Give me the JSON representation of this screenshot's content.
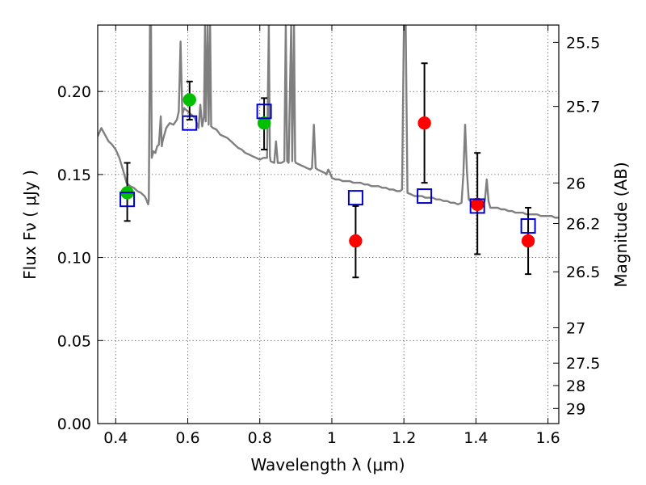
{
  "chart_data": {
    "type": "scatter",
    "xlabel": "Wavelength  λ (μm)",
    "ylabel": "Flux  Fν  ( μJy )",
    "ylabel_right": "Magnitude (AB)",
    "xlim": [
      0.35,
      1.63
    ],
    "ylim": [
      0.0,
      0.24
    ],
    "grid": true,
    "x_ticks": [
      0.4,
      0.6,
      0.8,
      1.0,
      1.2,
      1.4,
      1.6
    ],
    "x_tick_labels": [
      "0.4",
      "0.6",
      "0.8",
      "1",
      "1.2",
      "1.4",
      "1.6"
    ],
    "y_ticks": [
      0.0,
      0.05,
      0.1,
      0.15,
      0.2
    ],
    "y_tick_labels": [
      "0.00",
      "0.05",
      "0.10",
      "0.15",
      "0.20"
    ],
    "mag_ticks": [
      {
        "label": "25.5",
        "flux": 0.2296
      },
      {
        "label": "25.7",
        "flux": 0.191
      },
      {
        "label": "26",
        "flux": 0.1449
      },
      {
        "label": "26.2",
        "flux": 0.1205
      },
      {
        "label": "26.5",
        "flux": 0.0914
      },
      {
        "label": "27",
        "flux": 0.0577
      },
      {
        "label": "27.5",
        "flux": 0.0364
      },
      {
        "label": "28",
        "flux": 0.0229
      },
      {
        "label": "29",
        "flux": 0.0091
      }
    ],
    "series": [
      {
        "kind": "line",
        "color": "#7f7f7f",
        "points": [
          [
            0.35,
            0.173
          ],
          [
            0.36,
            0.178
          ],
          [
            0.37,
            0.174
          ],
          [
            0.38,
            0.17
          ],
          [
            0.39,
            0.168
          ],
          [
            0.4,
            0.165
          ],
          [
            0.41,
            0.16
          ],
          [
            0.42,
            0.153
          ],
          [
            0.43,
            0.145
          ],
          [
            0.44,
            0.143
          ],
          [
            0.45,
            0.142
          ],
          [
            0.46,
            0.14
          ],
          [
            0.47,
            0.139
          ],
          [
            0.48,
            0.137
          ],
          [
            0.485,
            0.135
          ],
          [
            0.49,
            0.132
          ],
          [
            0.492,
            0.135
          ],
          [
            0.495,
            0.24
          ],
          [
            0.498,
            0.24
          ],
          [
            0.5,
            0.16
          ],
          [
            0.505,
            0.164
          ],
          [
            0.51,
            0.163
          ],
          [
            0.515,
            0.167
          ],
          [
            0.52,
            0.168
          ],
          [
            0.525,
            0.185
          ],
          [
            0.528,
            0.167
          ],
          [
            0.53,
            0.17
          ],
          [
            0.54,
            0.178
          ],
          [
            0.55,
            0.181
          ],
          [
            0.56,
            0.18
          ],
          [
            0.57,
            0.183
          ],
          [
            0.575,
            0.188
          ],
          [
            0.58,
            0.23
          ],
          [
            0.585,
            0.186
          ],
          [
            0.59,
            0.19
          ],
          [
            0.6,
            0.188
          ],
          [
            0.61,
            0.186
          ],
          [
            0.62,
            0.184
          ],
          [
            0.625,
            0.181
          ],
          [
            0.63,
            0.178
          ],
          [
            0.635,
            0.192
          ],
          [
            0.64,
            0.179
          ],
          [
            0.645,
            0.185
          ],
          [
            0.648,
            0.24
          ],
          [
            0.65,
            0.182
          ],
          [
            0.655,
            0.24
          ],
          [
            0.658,
            0.18
          ],
          [
            0.662,
            0.24
          ],
          [
            0.665,
            0.179
          ],
          [
            0.67,
            0.178
          ],
          [
            0.68,
            0.177
          ],
          [
            0.69,
            0.174
          ],
          [
            0.7,
            0.173
          ],
          [
            0.71,
            0.172
          ],
          [
            0.72,
            0.17
          ],
          [
            0.73,
            0.168
          ],
          [
            0.74,
            0.166
          ],
          [
            0.75,
            0.165
          ],
          [
            0.76,
            0.163
          ],
          [
            0.77,
            0.162
          ],
          [
            0.78,
            0.161
          ],
          [
            0.79,
            0.16
          ],
          [
            0.8,
            0.159
          ],
          [
            0.81,
            0.16
          ],
          [
            0.82,
            0.16
          ],
          [
            0.825,
            0.24
          ],
          [
            0.828,
            0.161
          ],
          [
            0.83,
            0.158
          ],
          [
            0.84,
            0.157
          ],
          [
            0.845,
            0.17
          ],
          [
            0.85,
            0.157
          ],
          [
            0.86,
            0.157
          ],
          [
            0.868,
            0.158
          ],
          [
            0.872,
            0.24
          ],
          [
            0.876,
            0.158
          ],
          [
            0.88,
            0.157
          ],
          [
            0.887,
            0.24
          ],
          [
            0.89,
            0.158
          ],
          [
            0.895,
            0.24
          ],
          [
            0.898,
            0.158
          ],
          [
            0.9,
            0.157
          ],
          [
            0.91,
            0.156
          ],
          [
            0.92,
            0.155
          ],
          [
            0.93,
            0.154
          ],
          [
            0.94,
            0.153
          ],
          [
            0.945,
            0.154
          ],
          [
            0.95,
            0.18
          ],
          [
            0.955,
            0.154
          ],
          [
            0.96,
            0.153
          ],
          [
            0.97,
            0.152
          ],
          [
            0.98,
            0.151
          ],
          [
            0.985,
            0.15
          ],
          [
            0.99,
            0.153
          ],
          [
            0.995,
            0.151
          ],
          [
            1.0,
            0.148
          ],
          [
            1.01,
            0.147
          ],
          [
            1.02,
            0.147
          ],
          [
            1.03,
            0.146
          ],
          [
            1.04,
            0.146
          ],
          [
            1.05,
            0.146
          ],
          [
            1.06,
            0.145
          ],
          [
            1.07,
            0.145
          ],
          [
            1.08,
            0.145
          ],
          [
            1.09,
            0.144
          ],
          [
            1.1,
            0.144
          ],
          [
            1.11,
            0.143
          ],
          [
            1.12,
            0.143
          ],
          [
            1.13,
            0.143
          ],
          [
            1.14,
            0.142
          ],
          [
            1.15,
            0.142
          ],
          [
            1.16,
            0.141
          ],
          [
            1.17,
            0.141
          ],
          [
            1.18,
            0.14
          ],
          [
            1.19,
            0.14
          ],
          [
            1.195,
            0.141
          ],
          [
            1.2,
            0.24
          ],
          [
            1.205,
            0.24
          ],
          [
            1.21,
            0.139
          ],
          [
            1.22,
            0.138
          ],
          [
            1.23,
            0.137
          ],
          [
            1.24,
            0.137
          ],
          [
            1.25,
            0.137
          ],
          [
            1.26,
            0.136
          ],
          [
            1.27,
            0.136
          ],
          [
            1.28,
            0.136
          ],
          [
            1.29,
            0.135
          ],
          [
            1.3,
            0.135
          ],
          [
            1.31,
            0.134
          ],
          [
            1.32,
            0.134
          ],
          [
            1.33,
            0.133
          ],
          [
            1.34,
            0.133
          ],
          [
            1.35,
            0.132
          ],
          [
            1.36,
            0.133
          ],
          [
            1.365,
            0.15
          ],
          [
            1.37,
            0.18
          ],
          [
            1.375,
            0.152
          ],
          [
            1.38,
            0.135
          ],
          [
            1.39,
            0.133
          ],
          [
            1.4,
            0.132
          ],
          [
            1.41,
            0.131
          ],
          [
            1.42,
            0.131
          ],
          [
            1.425,
            0.135
          ],
          [
            1.43,
            0.147
          ],
          [
            1.435,
            0.134
          ],
          [
            1.44,
            0.13
          ],
          [
            1.45,
            0.13
          ],
          [
            1.46,
            0.13
          ],
          [
            1.47,
            0.129
          ],
          [
            1.48,
            0.129
          ],
          [
            1.49,
            0.128
          ],
          [
            1.5,
            0.128
          ],
          [
            1.51,
            0.127
          ],
          [
            1.52,
            0.127
          ],
          [
            1.53,
            0.127
          ],
          [
            1.54,
            0.126
          ],
          [
            1.55,
            0.126
          ],
          [
            1.56,
            0.126
          ],
          [
            1.57,
            0.126
          ],
          [
            1.58,
            0.125
          ],
          [
            1.59,
            0.125
          ],
          [
            1.6,
            0.125
          ],
          [
            1.61,
            0.125
          ],
          [
            1.62,
            0.124
          ],
          [
            1.63,
            0.124
          ]
        ]
      },
      {
        "kind": "errorbar",
        "color": "#000000",
        "points": [
          {
            "x": 0.432,
            "low": 0.122,
            "high": 0.157
          },
          {
            "x": 0.605,
            "low": 0.183,
            "high": 0.206
          },
          {
            "x": 0.812,
            "low": 0.165,
            "high": 0.196
          },
          {
            "x": 1.066,
            "low": 0.088,
            "high": 0.131
          },
          {
            "x": 1.257,
            "low": 0.145,
            "high": 0.217
          },
          {
            "x": 1.404,
            "low": 0.102,
            "high": 0.163
          },
          {
            "x": 1.545,
            "low": 0.09,
            "high": 0.13
          }
        ]
      },
      {
        "kind": "marker",
        "shape": "circle",
        "color": "#00bf00",
        "points": [
          [
            0.432,
            0.139
          ],
          [
            0.605,
            0.195
          ],
          [
            0.812,
            0.181
          ]
        ]
      },
      {
        "kind": "marker",
        "shape": "circle",
        "color": "#ff0000",
        "points": [
          [
            1.066,
            0.11
          ],
          [
            1.257,
            0.181
          ],
          [
            1.404,
            0.132
          ],
          [
            1.545,
            0.11
          ]
        ]
      },
      {
        "kind": "marker",
        "shape": "open-square",
        "color": "#0000cc",
        "points": [
          [
            0.432,
            0.135
          ],
          [
            0.605,
            0.181
          ],
          [
            0.812,
            0.188
          ],
          [
            1.066,
            0.136
          ],
          [
            1.257,
            0.137
          ],
          [
            1.404,
            0.131
          ],
          [
            1.545,
            0.119
          ]
        ]
      }
    ]
  }
}
